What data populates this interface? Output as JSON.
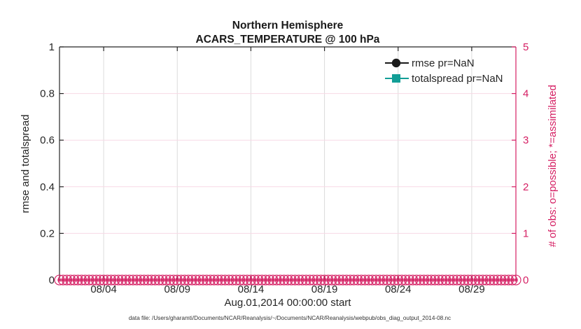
{
  "figure": {
    "title_line1": "Northern Hemisphere",
    "title_line2": "ACARS_TEMPERATURE @ 100 hPa",
    "xlabel": "Aug.01,2014 00:00:00 start",
    "ylabel_left": "rmse and totalspread",
    "ylabel_right": "# of obs: o=possible; *=assimilated",
    "footer": "data file: /Users/gharamti/Documents/NCAR/Reanalysis/~/Documents/NCAR/Reanalysis/webpub/obs_diag_output_2014-08.nc"
  },
  "legend": {
    "items": [
      {
        "label": "rmse pr=NaN",
        "marker": "filled-circle",
        "color": "#1a1a1a"
      },
      {
        "label": "totalspread pr=NaN",
        "marker": "filled-square",
        "color": "#129e96"
      }
    ]
  },
  "colors": {
    "axis_black": "#262626",
    "text_black": "#262626",
    "right_axis_crimson": "#d51f63",
    "teal": "#129e96",
    "grid_vertical_gray": "#dcdcdc",
    "grid_horizontal_pink": "#f7d9e5",
    "background": "#ffffff"
  },
  "chart_data": {
    "type": "line",
    "title": "Northern Hemisphere",
    "subtitle": "ACARS_TEMPERATURE @ 100 hPa",
    "xlabel": "Aug.01,2014 00:00:00 start",
    "grid": true,
    "legend_position": "northeast inside, no box",
    "x_axis": {
      "start": "2014-08-01 00:00:00",
      "end": "2014-09-01 00:00:00",
      "range_days": [
        0,
        31
      ],
      "tick_days": [
        3,
        8,
        13,
        18,
        23,
        28
      ],
      "tick_labels": [
        "08/04",
        "08/09",
        "08/14",
        "08/19",
        "08/24",
        "08/29"
      ]
    },
    "y_left": {
      "label": "rmse and totalspread",
      "lim": [
        0,
        1
      ],
      "ticks": [
        0,
        0.2,
        0.4,
        0.6,
        0.8,
        1
      ],
      "tick_labels": [
        "0",
        "0.2",
        "0.4",
        "0.6",
        "0.8",
        "1"
      ],
      "color": "#262626"
    },
    "y_right": {
      "label": "# of obs: o=possible; *=assimilated",
      "lim": [
        0,
        5
      ],
      "ticks": [
        0,
        1,
        2,
        3,
        4,
        5
      ],
      "tick_labels": [
        "0",
        "1",
        "2",
        "3",
        "4",
        "5"
      ],
      "color": "#d51f63"
    },
    "series": [
      {
        "name": "rmse pr=NaN",
        "axis": "left",
        "marker": "filled-circle",
        "color": "#1a1a1a",
        "values": "NaN"
      },
      {
        "name": "totalspread pr=NaN",
        "axis": "left",
        "marker": "filled-square",
        "color": "#129e96",
        "values": "NaN"
      },
      {
        "name": "possible obs count (o)",
        "axis": "right",
        "marker": "o",
        "color": "#d51f63",
        "constant_value": 0,
        "n_points": 125,
        "interval_hours": 6
      },
      {
        "name": "assimilated obs count (*)",
        "axis": "right",
        "marker": "*",
        "color": "#d51f63",
        "constant_value": 0,
        "n_points": 125,
        "interval_hours": 6
      }
    ]
  }
}
